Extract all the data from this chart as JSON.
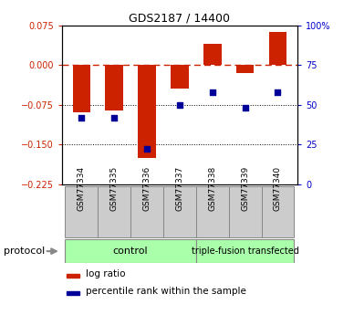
{
  "title": "GDS2187 / 14400",
  "samples": [
    "GSM77334",
    "GSM77335",
    "GSM77336",
    "GSM77337",
    "GSM77338",
    "GSM77339",
    "GSM77340"
  ],
  "log_ratio": [
    -0.09,
    -0.085,
    -0.175,
    -0.045,
    0.04,
    -0.015,
    0.062
  ],
  "percentile_rank": [
    42,
    42,
    22,
    50,
    58,
    48,
    58
  ],
  "bar_color": "#CC2200",
  "dot_color": "#000099",
  "ylim_left": [
    -0.225,
    0.075
  ],
  "ylim_right": [
    0,
    100
  ],
  "yticks_left": [
    0.075,
    0,
    -0.075,
    -0.15,
    -0.225
  ],
  "yticks_right": [
    100,
    75,
    50,
    25,
    0
  ],
  "hlines": [
    -0.075,
    -0.15
  ],
  "group1_label": "control",
  "group2_label": "triple-fusion transfected",
  "group1_color": "#aaffaa",
  "group2_color": "#aaffaa",
  "protocol_label": "protocol",
  "bg_color": "white",
  "bar_width": 0.55
}
